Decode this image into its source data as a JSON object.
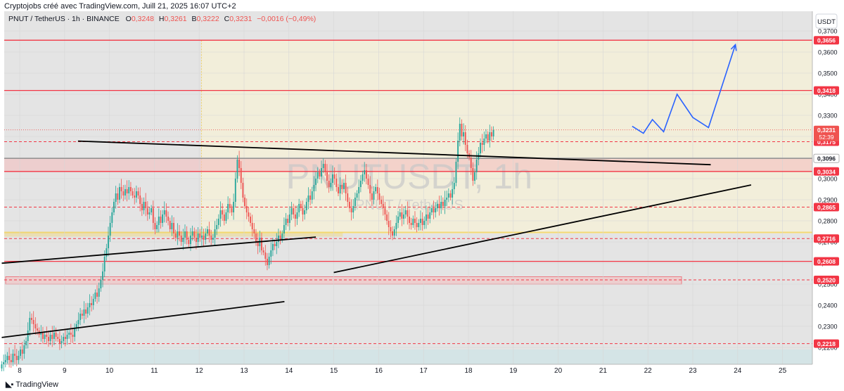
{
  "caption": "Cryptojobs créé avec TradingView.com, Juill 21, 2025 16:07 UTC+2",
  "symbol_line": {
    "symbol": "PNUT / TetherUS · 1h · BINANCE",
    "o_label": "O",
    "o": "0,3248",
    "h_label": "H",
    "h": "0,3261",
    "b_label": "B",
    "b": "0,3222",
    "c_label": "C",
    "c": "0,3231",
    "change": "−0,0016 (−0,49%)"
  },
  "currency_button": "USDT",
  "watermark": {
    "big": "PNUTUSDT, 1h",
    "small": "PNUT / TetherUS"
  },
  "footer_logo": "TradingView",
  "colors": {
    "up": "#26a69a",
    "down": "#ef5350",
    "level_line": "#f23645",
    "trendline": "#000000",
    "projection": "#2962ff",
    "range_zone": "#f5f0d8",
    "pane_bg": "#e4e4e4"
  },
  "chart_data": {
    "type": "candlestick",
    "title": "PNUT / TetherUS · 1h · BINANCE",
    "ylim": [
      0.218,
      0.378
    ],
    "y_ticks": [
      "0,3700",
      "0,3600",
      "0,3500",
      "0,3400",
      "0,3300",
      "0,3200",
      "0,3100",
      "0,3000",
      "0,2900",
      "0,2800",
      "0,2700",
      "0,2600",
      "0,2500",
      "0,2400",
      "0,2300",
      "0,2200"
    ],
    "x_ticks": [
      "8",
      "9",
      "10",
      "11",
      "12",
      "13",
      "14",
      "15",
      "16",
      "17",
      "18",
      "19",
      "20",
      "21",
      "22",
      "23",
      "24",
      "25"
    ],
    "last_price": {
      "value": 0.3231,
      "label": "0,3231",
      "countdown": "52:39"
    },
    "horizontal_levels": [
      {
        "value": 0.3656,
        "label": "0,3656",
        "style": "solid"
      },
      {
        "value": 0.3418,
        "label": "0,3418",
        "style": "solid"
      },
      {
        "value": 0.3175,
        "label": "0,3175",
        "style": "dashed"
      },
      {
        "value": 0.3096,
        "label": "0,3096",
        "style": "solid"
      },
      {
        "value": 0.3034,
        "label": "0,3034",
        "style": "solid"
      },
      {
        "value": 0.2865,
        "label": "0,2865",
        "style": "dashed"
      },
      {
        "value": 0.2716,
        "label": "0,2716",
        "style": "dashed"
      },
      {
        "value": 0.2608,
        "label": "0,2608",
        "style": "solid"
      },
      {
        "value": 0.252,
        "label": "0,2520",
        "style": "dashed"
      },
      {
        "value": 0.2218,
        "label": "0,2218",
        "style": "dashed"
      }
    ],
    "zones": [
      {
        "from": 0.3034,
        "to": 0.3096
      },
      {
        "from": 0.25,
        "to": 0.2535
      },
      {
        "from": 0.274,
        "to": 0.3656
      }
    ],
    "trendlines": [
      {
        "from": [
          9.3,
          0.3178
        ],
        "to": [
          23.4,
          0.3066
        ]
      },
      {
        "from": [
          15.0,
          0.2555
        ],
        "to": [
          24.3,
          0.297
        ]
      },
      {
        "from": [
          7.6,
          0.2599
        ],
        "to": [
          14.6,
          0.2723
        ]
      },
      {
        "from": [
          7.6,
          0.2247
        ],
        "to": [
          13.9,
          0.2417
        ]
      }
    ],
    "projection": [
      [
        21.65,
        0.3248
      ],
      [
        21.9,
        0.3215
      ],
      [
        22.1,
        0.328
      ],
      [
        22.35,
        0.3222
      ],
      [
        22.65,
        0.34
      ],
      [
        23.0,
        0.329
      ],
      [
        23.35,
        0.3242
      ],
      [
        23.95,
        0.3635
      ]
    ],
    "candles_hourly": {
      "start_day": 7.6,
      "values": [
        0.212,
        0.213,
        0.214,
        0.216,
        0.214,
        0.213,
        0.217,
        0.216,
        0.214,
        0.216,
        0.219,
        0.217,
        0.221,
        0.223,
        0.228,
        0.234,
        0.233,
        0.231,
        0.229,
        0.228,
        0.226,
        0.227,
        0.224,
        0.226,
        0.225,
        0.223,
        0.226,
        0.224,
        0.227,
        0.225,
        0.224,
        0.222,
        0.223,
        0.225,
        0.224,
        0.226,
        0.227,
        0.226,
        0.225,
        0.229,
        0.231,
        0.233,
        0.236,
        0.235,
        0.238,
        0.236,
        0.239,
        0.241,
        0.24,
        0.243,
        0.246,
        0.244,
        0.248,
        0.252,
        0.256,
        0.263,
        0.267,
        0.273,
        0.279,
        0.284,
        0.289,
        0.293,
        0.29,
        0.296,
        0.294,
        0.292,
        0.295,
        0.293,
        0.296,
        0.294,
        0.292,
        0.291,
        0.294,
        0.292,
        0.288,
        0.285,
        0.289,
        0.286,
        0.283,
        0.284,
        0.286,
        0.279,
        0.276,
        0.278,
        0.282,
        0.279,
        0.283,
        0.285,
        0.282,
        0.28,
        0.276,
        0.279,
        0.274,
        0.272,
        0.275,
        0.273,
        0.27,
        0.272,
        0.275,
        0.271,
        0.269,
        0.273,
        0.275,
        0.272,
        0.27,
        0.274,
        0.272,
        0.273,
        0.271,
        0.274,
        0.276,
        0.273,
        0.271,
        0.272,
        0.276,
        0.278,
        0.281,
        0.285,
        0.283,
        0.28,
        0.284,
        0.288,
        0.286,
        0.284,
        0.289,
        0.3,
        0.309,
        0.305,
        0.298,
        0.291,
        0.287,
        0.284,
        0.282,
        0.279,
        0.276,
        0.274,
        0.27,
        0.268,
        0.272,
        0.266,
        0.265,
        0.262,
        0.259,
        0.263,
        0.266,
        0.269,
        0.268,
        0.27,
        0.273,
        0.271,
        0.274,
        0.278,
        0.281,
        0.279,
        0.283,
        0.286,
        0.283,
        0.281,
        0.284,
        0.288,
        0.286,
        0.283,
        0.285,
        0.289,
        0.292,
        0.29,
        0.294,
        0.297,
        0.3,
        0.303,
        0.301,
        0.305,
        0.307,
        0.303,
        0.299,
        0.296,
        0.298,
        0.302,
        0.3,
        0.296,
        0.293,
        0.297,
        0.295,
        0.298,
        0.293,
        0.289,
        0.286,
        0.284,
        0.287,
        0.291,
        0.293,
        0.296,
        0.299,
        0.302,
        0.304,
        0.3,
        0.297,
        0.293,
        0.29,
        0.294,
        0.296,
        0.293,
        0.29,
        0.288,
        0.286,
        0.283,
        0.28,
        0.277,
        0.275,
        0.273,
        0.276,
        0.279,
        0.282,
        0.284,
        0.281,
        0.283,
        0.285,
        0.282,
        0.279,
        0.278,
        0.281,
        0.279,
        0.277,
        0.279,
        0.281,
        0.278,
        0.28,
        0.283,
        0.281,
        0.284,
        0.286,
        0.284,
        0.286,
        0.288,
        0.286,
        0.289,
        0.287,
        0.29,
        0.291,
        0.293,
        0.291,
        0.295,
        0.298,
        0.308,
        0.318,
        0.326,
        0.32,
        0.322,
        0.316,
        0.312,
        0.31,
        0.305,
        0.299,
        0.303,
        0.309,
        0.312,
        0.317,
        0.316,
        0.319,
        0.321,
        0.318,
        0.322,
        0.32,
        0.323
      ]
    }
  }
}
